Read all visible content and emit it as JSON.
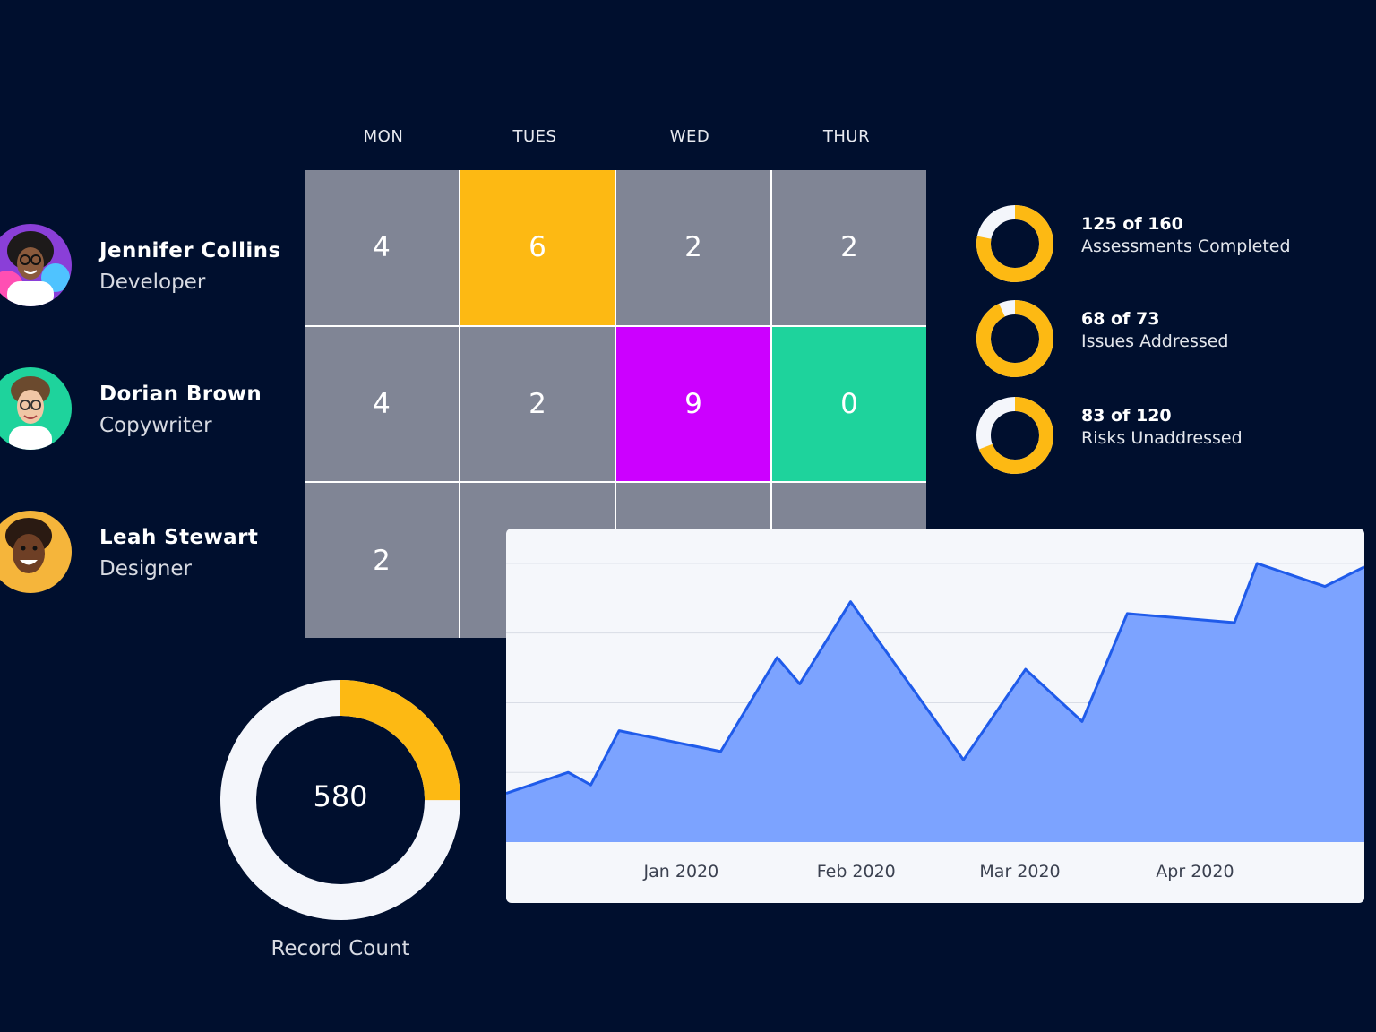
{
  "days": [
    "MON",
    "TUES",
    "WED",
    "THUR"
  ],
  "people": [
    {
      "name": "Jennifer Collins",
      "role": "Developer"
    },
    {
      "name": "Dorian Brown",
      "role": "Copywriter"
    },
    {
      "name": "Leah Stewart",
      "role": "Designer"
    }
  ],
  "grid": [
    [
      {
        "value": "4",
        "color": "#808595"
      },
      {
        "value": "6",
        "color": "#fdb913"
      },
      {
        "value": "2",
        "color": "#808595"
      },
      {
        "value": "2",
        "color": "#808595"
      }
    ],
    [
      {
        "value": "4",
        "color": "#808595"
      },
      {
        "value": "2",
        "color": "#808595"
      },
      {
        "value": "9",
        "color": "#cc00ff"
      },
      {
        "value": "0",
        "color": "#1ed39c"
      }
    ],
    [
      {
        "value": "2",
        "color": "#808595"
      },
      {
        "value": "",
        "color": "#808595"
      },
      {
        "value": "",
        "color": "#808595"
      },
      {
        "value": "",
        "color": "#808595"
      }
    ]
  ],
  "stats": [
    {
      "count": "125 of 160",
      "label": "Assessments Completed",
      "fraction": 0.78
    },
    {
      "count": "68 of 73",
      "label": "Issues Addressed",
      "fraction": 0.93
    },
    {
      "count": "83 of 120",
      "label": "Risks Unaddressed",
      "fraction": 0.69
    }
  ],
  "record": {
    "value": "580",
    "label": "Record Count",
    "fraction": 0.25
  },
  "colors": {
    "background": "#000f2e",
    "accent": "#fdb913",
    "donut_track": "#f4f6fb",
    "area_fill": "#7ca3ff",
    "area_line": "#1f5bea"
  },
  "chart_data": {
    "type": "area",
    "x": [
      "2019-12-01",
      "2019-12-12",
      "2019-12-16",
      "2019-12-21",
      "2020-01-08",
      "2020-01-18",
      "2020-01-22",
      "2020-01-31",
      "2020-02-20",
      "2020-03-02",
      "2020-03-12",
      "2020-03-20",
      "2020-04-08",
      "2020-04-12",
      "2020-04-24",
      "2020-05-01"
    ],
    "y": [
      0.7,
      1.0,
      0.82,
      1.6,
      1.3,
      2.65,
      2.27,
      3.45,
      1.18,
      2.48,
      1.73,
      3.28,
      3.15,
      4.0,
      3.67,
      3.95
    ],
    "x_ticks": [
      "Jan 2020",
      "Feb 2020",
      "Mar 2020",
      "Apr 2020"
    ],
    "ylim": [
      0,
      4.5
    ],
    "grid": true,
    "title": "",
    "xlabel": "",
    "ylabel": ""
  }
}
